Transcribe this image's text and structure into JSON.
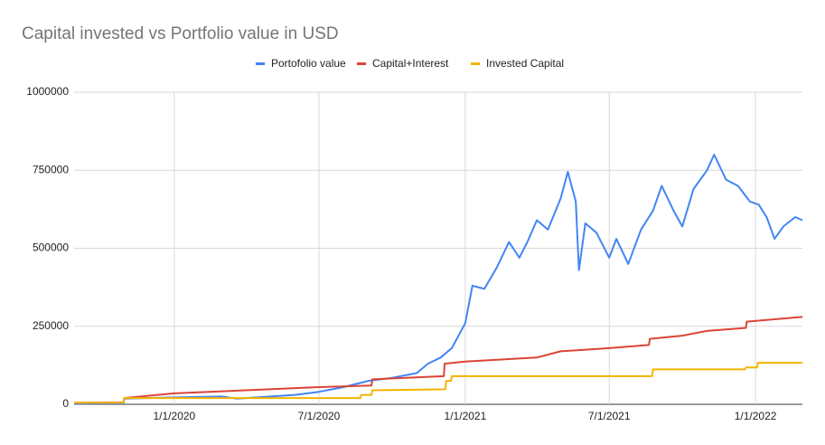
{
  "chart_data": {
    "type": "line",
    "title": "Capital invested vs Portfolio value in USD",
    "xlim": [
      "2019-08-28",
      "2022-03-01"
    ],
    "xticks": [
      {
        "value": "2020-01-01",
        "label": "1/1/2020"
      },
      {
        "value": "2020-07-01",
        "label": "7/1/2020"
      },
      {
        "value": "2021-01-01",
        "label": "1/1/2021"
      },
      {
        "value": "2021-07-01",
        "label": "7/1/2021"
      },
      {
        "value": "2022-01-01",
        "label": "1/1/2022"
      }
    ],
    "ylim": [
      0,
      1000000
    ],
    "yticks": [
      0,
      250000,
      500000,
      750000,
      1000000
    ],
    "grid": true,
    "legend": "top",
    "series": [
      {
        "name": "Portofolio value",
        "color": "#4285f4",
        "x": [
          "2019-08-28",
          "2019-10-29",
          "2019-10-30",
          "2020-01-01",
          "2020-03-01",
          "2020-03-20",
          "2020-06-01",
          "2020-07-01",
          "2020-08-01",
          "2020-09-01",
          "2020-10-01",
          "2020-11-01",
          "2020-11-15",
          "2020-12-01",
          "2020-12-15",
          "2021-01-01",
          "2021-01-10",
          "2021-01-25",
          "2021-02-10",
          "2021-02-25",
          "2021-03-10",
          "2021-03-20",
          "2021-04-01",
          "2021-04-15",
          "2021-05-01",
          "2021-05-10",
          "2021-05-20",
          "2021-05-24",
          "2021-06-01",
          "2021-06-15",
          "2021-07-01",
          "2021-07-10",
          "2021-07-25",
          "2021-08-10",
          "2021-08-25",
          "2021-09-05",
          "2021-09-20",
          "2021-10-01",
          "2021-10-15",
          "2021-11-01",
          "2021-11-10",
          "2021-11-25",
          "2021-12-10",
          "2021-12-25",
          "2022-01-05",
          "2022-01-15",
          "2022-01-25",
          "2022-02-05",
          "2022-02-20",
          "2022-03-01"
        ],
        "values": [
          2000,
          3000,
          18000,
          22000,
          25000,
          18000,
          30000,
          40000,
          55000,
          75000,
          85000,
          100000,
          130000,
          150000,
          180000,
          260000,
          380000,
          370000,
          440000,
          520000,
          470000,
          520000,
          590000,
          560000,
          660000,
          745000,
          650000,
          430000,
          580000,
          550000,
          470000,
          530000,
          450000,
          560000,
          620000,
          700000,
          620000,
          570000,
          690000,
          750000,
          800000,
          720000,
          700000,
          650000,
          640000,
          600000,
          530000,
          570000,
          600000,
          590000
        ]
      },
      {
        "name": "Capital+Interest",
        "color": "#db4437",
        "x": [
          "2019-08-28",
          "2019-10-29",
          "2019-10-30",
          "2020-01-01",
          "2020-07-01",
          "2020-09-05",
          "2020-09-06",
          "2020-12-05",
          "2020-12-06",
          "2021-01-01",
          "2021-04-01",
          "2021-05-01",
          "2021-07-01",
          "2021-08-20",
          "2021-08-21",
          "2021-10-01",
          "2021-11-01",
          "2021-12-20",
          "2021-12-21",
          "2022-03-01"
        ],
        "values": [
          5000,
          6000,
          20000,
          35000,
          55000,
          60000,
          80000,
          90000,
          130000,
          137000,
          150000,
          170000,
          180000,
          190000,
          210000,
          220000,
          235000,
          245000,
          265000,
          280000
        ]
      },
      {
        "name": "Invested Capital",
        "color": "#f4b400",
        "x": [
          "2019-08-28",
          "2019-10-29",
          "2019-10-30",
          "2020-08-22",
          "2020-08-23",
          "2020-09-05",
          "2020-09-06",
          "2020-12-07",
          "2020-12-08",
          "2020-12-14",
          "2020-12-15",
          "2021-08-24",
          "2021-08-25",
          "2021-12-19",
          "2021-12-20",
          "2022-01-03",
          "2022-01-04",
          "2022-03-01"
        ],
        "values": [
          5000,
          5000,
          20000,
          20000,
          30000,
          30000,
          45000,
          48000,
          75000,
          75000,
          90000,
          90000,
          112000,
          112000,
          118000,
          118000,
          133000,
          133000
        ]
      }
    ]
  }
}
